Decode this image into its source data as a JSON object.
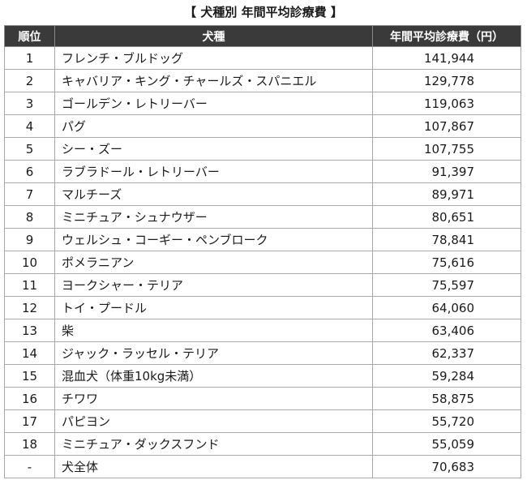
{
  "title": "【 犬種別 年間平均診療費 】",
  "headers": {
    "rank": "順位",
    "breed": "犬種",
    "cost": "年間平均診療費（円）"
  },
  "rows": [
    {
      "rank": "1",
      "breed": "フレンチ・ブルドッグ",
      "cost": "141,944"
    },
    {
      "rank": "2",
      "breed": "キャバリア・キング・チャールズ・スパニエル",
      "cost": "129,778"
    },
    {
      "rank": "3",
      "breed": "ゴールデン・レトリーバー",
      "cost": "119,063"
    },
    {
      "rank": "4",
      "breed": "パグ",
      "cost": "107,867"
    },
    {
      "rank": "5",
      "breed": "シー・ズー",
      "cost": "107,755"
    },
    {
      "rank": "6",
      "breed": "ラブラドール・レトリーバー",
      "cost": "91,397"
    },
    {
      "rank": "7",
      "breed": "マルチーズ",
      "cost": "89,971"
    },
    {
      "rank": "8",
      "breed": "ミニチュア・シュナウザー",
      "cost": "80,651"
    },
    {
      "rank": "9",
      "breed": "ウェルシュ・コーギー・ペンブローク",
      "cost": "78,841"
    },
    {
      "rank": "10",
      "breed": "ポメラニアン",
      "cost": "75,616"
    },
    {
      "rank": "11",
      "breed": "ヨークシャー・テリア",
      "cost": "75,597"
    },
    {
      "rank": "12",
      "breed": "トイ・プードル",
      "cost": "64,060"
    },
    {
      "rank": "13",
      "breed": "柴",
      "cost": "63,406"
    },
    {
      "rank": "14",
      "breed": "ジャック・ラッセル・テリア",
      "cost": "62,337"
    },
    {
      "rank": "15",
      "breed": "混血犬（体重10kg未満）",
      "cost": "59,284"
    },
    {
      "rank": "16",
      "breed": "チワワ",
      "cost": "58,875"
    },
    {
      "rank": "17",
      "breed": "パピヨン",
      "cost": "55,720"
    },
    {
      "rank": "18",
      "breed": "ミニチュア・ダックスフンド",
      "cost": "55,059"
    },
    {
      "rank": "-",
      "breed": "犬全体",
      "cost": "70,683"
    }
  ]
}
